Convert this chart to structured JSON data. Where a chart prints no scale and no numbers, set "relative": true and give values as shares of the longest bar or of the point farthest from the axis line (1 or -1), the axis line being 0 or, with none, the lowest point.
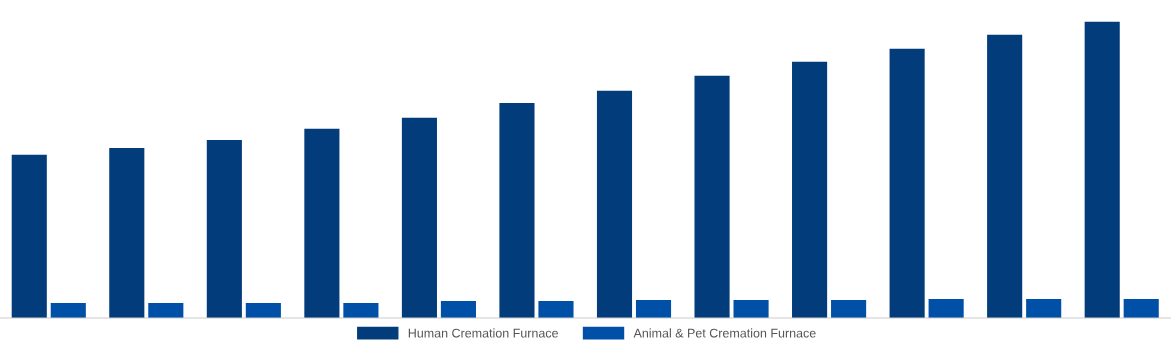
{
  "chart_data": {
    "type": "bar",
    "relative": true,
    "categories": [
      null,
      null,
      null,
      null,
      null,
      null,
      null,
      null,
      null,
      null,
      null,
      null
    ],
    "series": [
      {
        "name": "Human Cremation Furnace",
        "color": "#033c7a",
        "values": [
          0.551,
          0.574,
          0.601,
          0.639,
          0.676,
          0.726,
          0.767,
          0.818,
          0.865,
          0.909,
          0.956,
          1
        ]
      },
      {
        "name": "Animal & Pet Cremation Furnace",
        "color": "#0050a8",
        "values": [
          0.051,
          0.051,
          0.051,
          0.051,
          0.057,
          0.057,
          0.061,
          0.061,
          0.061,
          0.064,
          0.064,
          0.064
        ]
      }
    ],
    "legend": "bottom",
    "grid": false
  }
}
